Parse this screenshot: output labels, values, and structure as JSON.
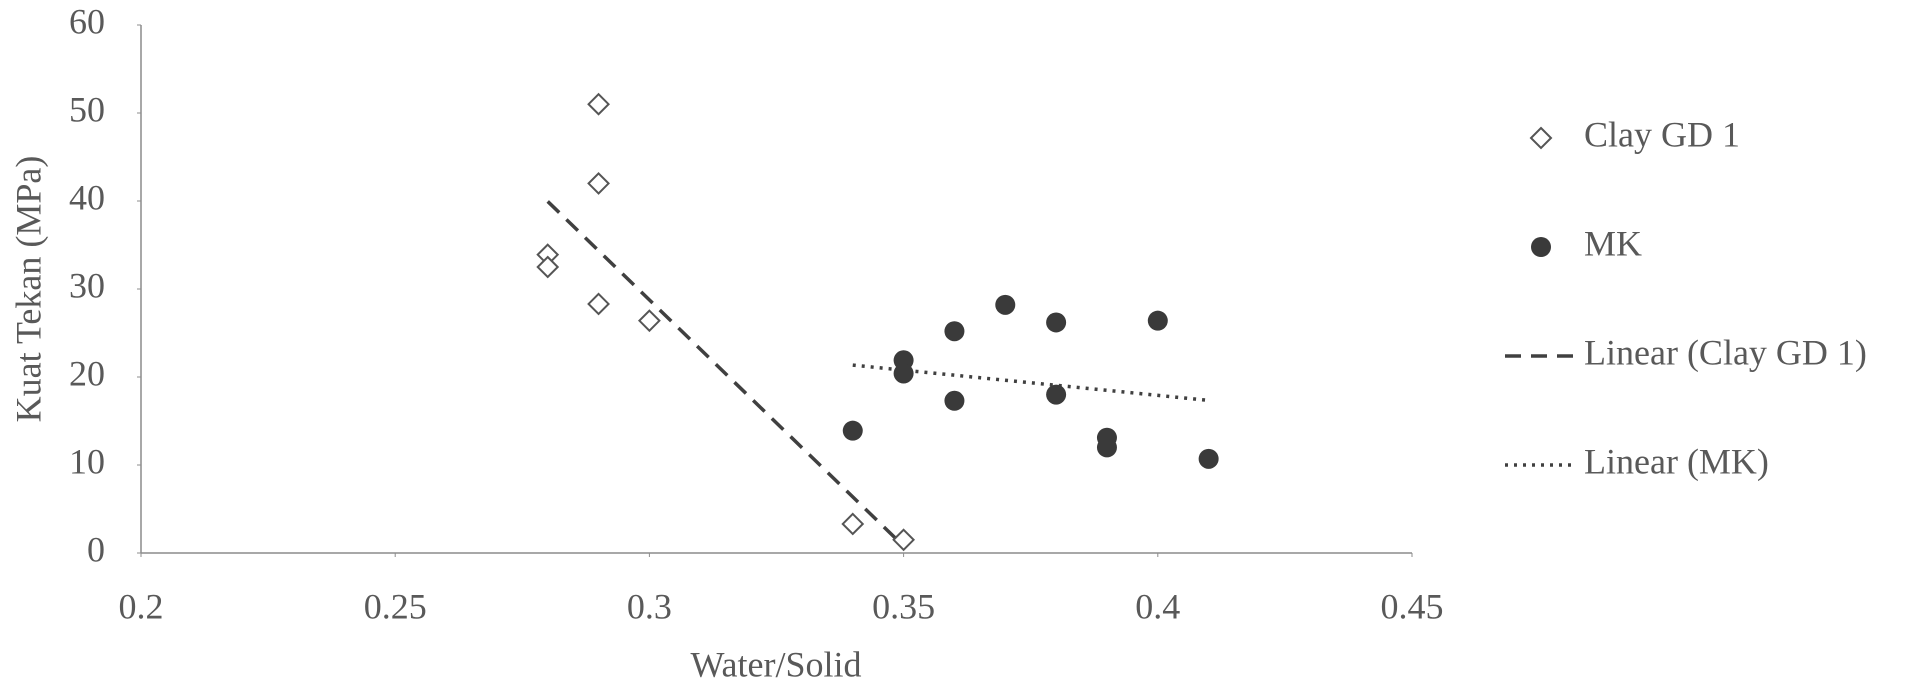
{
  "chart_data": {
    "type": "scatter",
    "x_label": "Water/Solid",
    "y_label": "Kuat Tekan (MPa)",
    "xlim": [
      0.2,
      0.45
    ],
    "xticks": [
      0.2,
      0.25,
      0.3,
      0.35,
      0.4,
      0.45
    ],
    "ylim": [
      0,
      60
    ],
    "yticks": [
      0,
      10,
      20,
      30,
      40,
      50,
      60
    ],
    "grid": false,
    "legend": "right",
    "series": [
      {
        "name": "Clay GD 1",
        "marker": "diamond",
        "color": "#555555",
        "x": [
          0.28,
          0.28,
          0.29,
          0.29,
          0.29,
          0.3,
          0.34,
          0.35
        ],
        "values": [
          33.9,
          32.5,
          51,
          42,
          28.3,
          26.4,
          3.3,
          1.5
        ],
        "trendline": {
          "name": "Linear (Clay GD 1)",
          "style": "dashed",
          "color": "#404040"
        }
      },
      {
        "name": "MK",
        "marker": "circle",
        "color": "#3a3a3a",
        "x": [
          0.34,
          0.35,
          0.35,
          0.36,
          0.36,
          0.37,
          0.38,
          0.38,
          0.39,
          0.39,
          0.4,
          0.41
        ],
        "values": [
          13.9,
          21.9,
          20.4,
          25.2,
          17.3,
          28.2,
          26.2,
          18,
          13.1,
          12,
          26.4,
          10.7
        ],
        "trendline": {
          "name": "Linear (MK)",
          "style": "dotted",
          "color": "#404040"
        }
      }
    ]
  }
}
